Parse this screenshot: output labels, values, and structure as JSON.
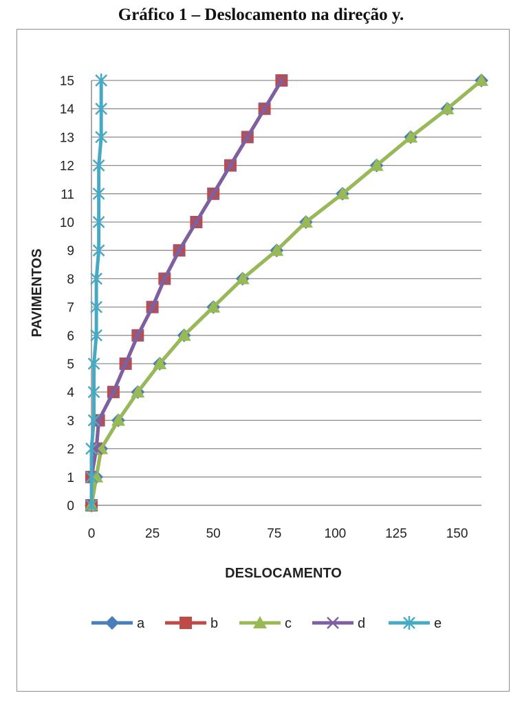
{
  "caption": "Gráfico 1 – Deslocamento na direção y.",
  "chart_data": {
    "type": "line",
    "title": "Gráfico 1 – Deslocamento na direção y.",
    "xlabel": "DESLOCAMENTO",
    "ylabel": "PAVIMENTOS",
    "xlim": [
      0,
      160
    ],
    "ylim": [
      0,
      15
    ],
    "xticks": [
      0,
      25,
      50,
      75,
      100,
      125,
      150
    ],
    "yticks": [
      0,
      1,
      2,
      3,
      4,
      5,
      6,
      7,
      8,
      9,
      10,
      11,
      12,
      13,
      14,
      15
    ],
    "grid": "horizontal",
    "legend_position": "bottom",
    "series": [
      {
        "name": "a",
        "color": "#4a7ebb",
        "marker": "diamond",
        "x": [
          0,
          2,
          4,
          11,
          19,
          28,
          38,
          50,
          62,
          76,
          88,
          103,
          117,
          131,
          146,
          160
        ],
        "y": [
          0,
          1,
          2,
          3,
          4,
          5,
          6,
          7,
          8,
          9,
          10,
          11,
          12,
          13,
          14,
          15
        ]
      },
      {
        "name": "b",
        "color": "#be4b48",
        "marker": "square",
        "x": [
          0,
          0,
          2,
          3,
          9,
          14,
          19,
          25,
          30,
          36,
          43,
          50,
          57,
          64,
          71,
          78
        ],
        "y": [
          0,
          1,
          2,
          3,
          4,
          5,
          6,
          7,
          8,
          9,
          10,
          11,
          12,
          13,
          14,
          15
        ]
      },
      {
        "name": "c",
        "color": "#98b954",
        "marker": "triangle",
        "x": [
          0,
          2,
          4,
          11,
          19,
          28,
          38,
          50,
          62,
          76,
          88,
          103,
          117,
          131,
          146,
          160
        ],
        "y": [
          0,
          1,
          2,
          3,
          4,
          5,
          6,
          7,
          8,
          9,
          10,
          11,
          12,
          13,
          14,
          15
        ]
      },
      {
        "name": "d",
        "color": "#7d60a0",
        "marker": "x",
        "x": [
          0,
          0,
          2,
          3,
          9,
          14,
          19,
          25,
          30,
          36,
          43,
          50,
          57,
          64,
          71,
          78
        ],
        "y": [
          0,
          1,
          2,
          3,
          4,
          5,
          6,
          7,
          8,
          9,
          10,
          11,
          12,
          13,
          14,
          15
        ]
      },
      {
        "name": "e",
        "color": "#46aac5",
        "marker": "asterisk",
        "x": [
          0,
          0,
          0,
          1,
          1,
          1,
          2,
          2,
          2,
          3,
          3,
          3,
          3,
          4,
          4,
          4
        ],
        "y": [
          0,
          1,
          2,
          3,
          4,
          5,
          6,
          7,
          8,
          9,
          10,
          11,
          12,
          13,
          14,
          15
        ]
      }
    ]
  }
}
